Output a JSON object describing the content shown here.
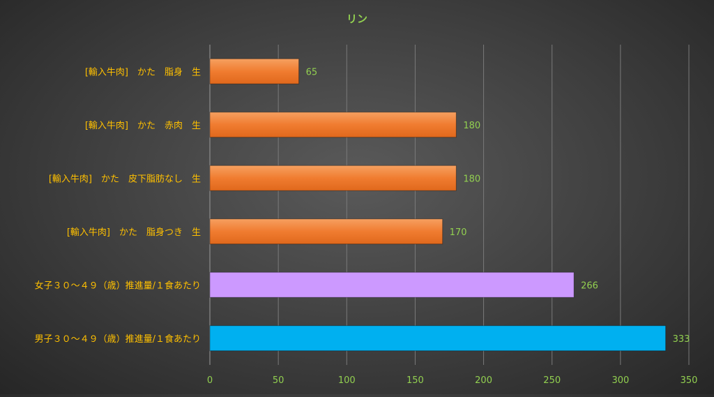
{
  "chart_data": {
    "type": "bar",
    "orientation": "horizontal",
    "title": "リン",
    "categories": [
      "[輸入牛肉]　かた　脂身　生",
      "[輸入牛肉]　かた　赤肉　生",
      "[輸入牛肉]　かた　皮下脂肪なし　生",
      "[輸入牛肉]　かた　脂身つき　生",
      "女子３０～４９（歳）推進量/１食あたり",
      "男子３０～４９（歳）推進量/１食あたり"
    ],
    "values": [
      65,
      180,
      180,
      170,
      266,
      333
    ],
    "bar_colors": [
      "#f07c30",
      "#f07c30",
      "#f07c30",
      "#f07c30",
      "#cc99ff",
      "#00b0f0"
    ],
    "xlim": [
      0,
      350
    ],
    "x_ticks": [
      0,
      50,
      100,
      150,
      200,
      250,
      300,
      350
    ],
    "grid": true,
    "legend": "none",
    "colors": {
      "title": "#92d050",
      "category_label": "#ffc000",
      "tick_label": "#92d050",
      "data_label": "#92d050",
      "gridline": "#7a7a7a"
    }
  }
}
